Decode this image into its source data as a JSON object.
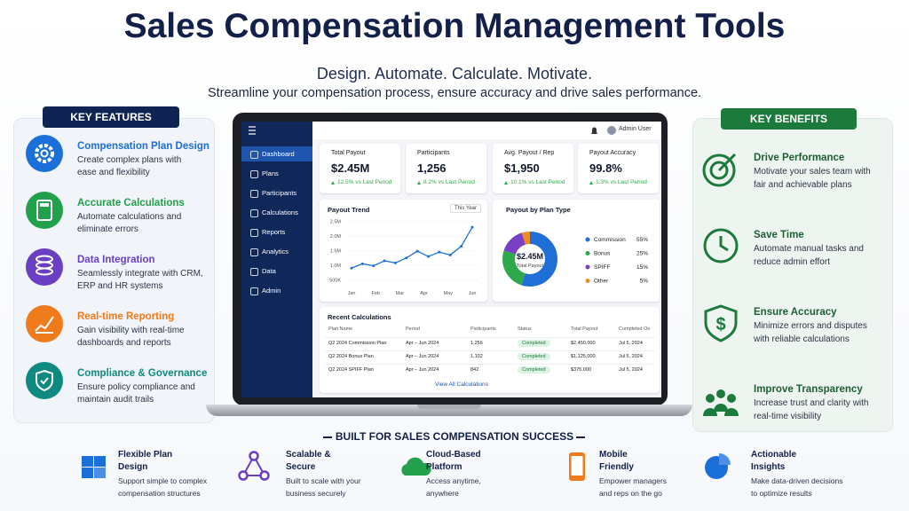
{
  "header": {
    "title": "Sales Compensation Management Tools",
    "subtitle": "Design. Automate. Calculate. Motivate.",
    "tagline": "Streamline your compensation process, ensure accuracy and drive sales performance."
  },
  "features": {
    "heading": "KEY FEATURES",
    "items": [
      {
        "title": "Compensation Plan Design",
        "desc": [
          "Create complex plans with",
          "ease and flexibility"
        ]
      },
      {
        "title": "Accurate Calculations",
        "desc": [
          "Automate calculations and",
          "eliminate errors"
        ]
      },
      {
        "title": "Data Integration",
        "desc": [
          "Seamlessly integrate with CRM,",
          "ERP and HR systems"
        ]
      },
      {
        "title": "Real-time Reporting",
        "desc": [
          "Gain visibility with real-time",
          "dashboards and reports"
        ]
      },
      {
        "title": "Compliance & Governance",
        "desc": [
          "Ensure policy compliance and",
          "maintain audit trails"
        ]
      }
    ]
  },
  "benefits": {
    "heading": "KEY BENEFITS",
    "items": [
      {
        "title": "Drive Performance",
        "desc": [
          "Motivate your sales team with",
          "fair and achievable plans"
        ]
      },
      {
        "title": "Save Time",
        "desc": [
          "Automate manual tasks and",
          "reduce admin effort"
        ]
      },
      {
        "title": "Ensure Accuracy",
        "desc": [
          "Minimize errors and disputes",
          "with reliable calculations"
        ]
      },
      {
        "title": "Improve Transparency",
        "desc": [
          "Increase trust and clarity with",
          "real-time visibility"
        ]
      }
    ]
  },
  "dashboard": {
    "user": "Admin User",
    "nav": [
      "Dashboard",
      "Plans",
      "Participants",
      "Calculations",
      "Reports",
      "Analytics",
      "Data",
      "Admin"
    ],
    "kpis": [
      {
        "label": "Total Payout",
        "value": "$2.45M",
        "change": "12.5% vs Last Period"
      },
      {
        "label": "Participants",
        "value": "1,256",
        "change": "8.2% vs Last Period"
      },
      {
        "label": "Avg. Payout / Rep",
        "value": "$1,950",
        "change": "10.1% vs Last Period"
      },
      {
        "label": "Payout Accuracy",
        "value": "99.8%",
        "change": "1.3% vs Last Period"
      }
    ],
    "trend": {
      "title": "Payout Trend",
      "period": "This Year",
      "months": [
        "Jan",
        "Feb",
        "Mar",
        "Apr",
        "May",
        "Jun"
      ],
      "values": [
        900000,
        1050000,
        980000,
        1150000,
        1080000,
        1250000,
        1480000,
        1300000,
        1450000,
        1350000,
        1650000,
        2300000
      ],
      "ylim": [
        300000,
        2700000
      ],
      "yticks": [
        {
          "value": 500000,
          "label": "500K"
        },
        {
          "value": 1000000,
          "label": "1.0M"
        },
        {
          "value": 1500000,
          "label": "1.5M"
        },
        {
          "value": 2000000,
          "label": "2.0M"
        },
        {
          "value": 2500000,
          "label": "2.5M"
        }
      ]
    },
    "share": {
      "title": "Payout by Plan Type",
      "center_value": "$2.45M",
      "center_label": "Total Payout",
      "segments": [
        {
          "name": "Commission",
          "value": 55,
          "label": "55%",
          "color": "#1f6fd6"
        },
        {
          "name": "Bonus",
          "value": 25,
          "label": "25%",
          "color": "#2ea84a"
        },
        {
          "name": "SPIFF",
          "value": 15,
          "label": "15%",
          "color": "#7b3fc4"
        },
        {
          "name": "Other",
          "value": 5,
          "label": "5%",
          "color": "#f08a24"
        }
      ]
    },
    "table": {
      "title": "Recent Calculations",
      "columns": [
        "Plan Name",
        "Period",
        "Participants",
        "Status",
        "Total Payout",
        "Completed On"
      ],
      "rows": [
        [
          "Q2 2024 Commission Plan",
          "Apr – Jun 2024",
          "1,256",
          "Completed",
          "$2,450,000",
          "Jul 5, 2024"
        ],
        [
          "Q2 2024 Bonus Plan",
          "Apr – Jun 2024",
          "1,102",
          "Completed",
          "$1,125,000",
          "Jul 5, 2024"
        ],
        [
          "Q2 2024 SPIFF Plan",
          "Apr – Jun 2024",
          "842",
          "Completed",
          "$375,000",
          "Jul 5, 2024"
        ]
      ],
      "link": "View All Calculations"
    }
  },
  "footer": {
    "heading": "BUILT FOR SALES COMPENSATION SUCCESS",
    "items": [
      {
        "title": [
          "Flexible Plan",
          "Design"
        ],
        "desc": [
          "Support simple to complex",
          "compensation structures"
        ]
      },
      {
        "title": [
          "Scalable &",
          "Secure"
        ],
        "desc": [
          "Built to scale with your",
          "business securely"
        ]
      },
      {
        "title": [
          "Cloud-Based",
          "Platform"
        ],
        "desc": [
          "Access anytime,",
          "anywhere"
        ]
      },
      {
        "title": [
          "Mobile",
          "Friendly"
        ],
        "desc": [
          "Empower managers",
          "and reps on the go"
        ]
      },
      {
        "title": [
          "Actionable",
          "Insights"
        ],
        "desc": [
          "Make data-driven decisions",
          "to optimize results"
        ]
      }
    ]
  }
}
